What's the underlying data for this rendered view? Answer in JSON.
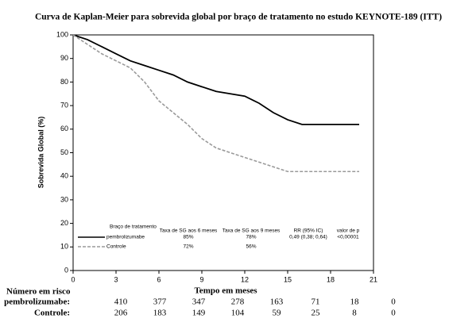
{
  "chart_data": {
    "type": "line",
    "title": "Curva de Kaplan-Meier para sobrevida global por braço de tratamento no estudo KEYNOTE-189 (ITT)",
    "x_label": "Tempo em meses",
    "y_label": "Sobrevida Global (%)",
    "x": [
      0,
      1,
      2,
      3,
      4,
      5,
      6,
      7,
      8,
      9,
      10,
      11,
      12,
      13,
      14,
      15,
      16,
      17,
      18,
      19,
      20
    ],
    "series": [
      {
        "name": "pembrolizumabe",
        "color": "#000000",
        "dash": false,
        "values": [
          100,
          98,
          95,
          92,
          89,
          87,
          85,
          83,
          80,
          78,
          76,
          75,
          74,
          71,
          67,
          64,
          62,
          62,
          62,
          62,
          62
        ]
      },
      {
        "name": "Controle",
        "color": "#9a9a9a",
        "dash": true,
        "values": [
          100,
          96,
          92,
          89,
          86,
          80,
          72,
          67,
          62,
          56,
          52,
          50,
          48,
          46,
          44,
          42,
          42,
          42,
          42,
          42,
          42
        ]
      }
    ],
    "xlim": [
      0,
      21
    ],
    "xticks": [
      0,
      3,
      6,
      9,
      12,
      15,
      18,
      21
    ],
    "ylim": [
      0,
      100
    ],
    "yticks": [
      0,
      10,
      20,
      30,
      40,
      50,
      60,
      70,
      80,
      90,
      100
    ],
    "summary": {
      "columns": [
        "Braço de tratamento",
        "Taxa de SG aos 6 meses",
        "Taxa de SG aos 9 meses",
        "RR (95% IC)",
        "valor de p"
      ],
      "rows": [
        [
          "85%",
          "78%",
          "0,49 (0,38; 0,64)",
          "<0,00001"
        ],
        [
          "72%",
          "56%"
        ]
      ]
    },
    "risk_table": {
      "title": "Número em risco",
      "rows": [
        {
          "label": "pembrolizumabe:",
          "counts": [
            410,
            377,
            347,
            278,
            163,
            71,
            18,
            0
          ]
        },
        {
          "label": "Controle:",
          "counts": [
            206,
            183,
            149,
            104,
            59,
            25,
            8,
            0
          ]
        }
      ]
    }
  }
}
